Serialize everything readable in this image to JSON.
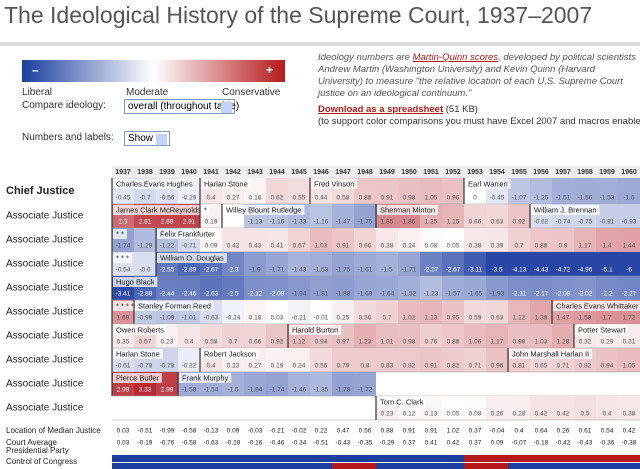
{
  "title": "The Ideological History of the Supreme Court, 1937–2007",
  "legend": {
    "minus": "–",
    "plus": "+",
    "labels": [
      "Liberal",
      "Moderate",
      "Conservative"
    ]
  },
  "controls": [
    {
      "label": "Compare ideology:",
      "value": "overall (throughout table)"
    },
    {
      "label": "Numbers and labels:",
      "value": "Show"
    }
  ],
  "intro": {
    "before": "Ideology numbers are ",
    "link": "Martin-Quinn scores",
    "after": ", developed by political scientists Andrew Martin (Washington University) and Kevin Quinn (Harvard University) to measure \"the relative location of each U.S. Supreme Court justice on an ideological continuum.\""
  },
  "download": {
    "link": "Download as a spreadsheet",
    "size": "(51 KB)",
    "note": "(to support color comparisons you must have Excel 2007 and macros enabled)"
  },
  "table": {
    "years": [
      1937,
      1938,
      1939,
      1940,
      1941,
      1942,
      1943,
      1944,
      1945,
      1946,
      1947,
      1948,
      1949,
      1950,
      1951,
      1952,
      1953,
      1954,
      1955,
      1956,
      1957,
      1958,
      1959,
      1960
    ],
    "rows": [
      {
        "role": "Chief Justice",
        "segments": [
          {
            "name": "Charles Evans Hughes",
            "start": 0
          },
          {
            "name": "Harlan Stone",
            "start": 4
          },
          {
            "name": "Fred Vinson",
            "start": 9
          },
          {
            "name": "Earl Warren",
            "start": 16
          }
        ],
        "values": [
          -0.45,
          -0.7,
          -0.56,
          -0.29,
          0.4,
          0.27,
          0.18,
          0.62,
          0.55,
          0.44,
          0.58,
          0.88,
          0.91,
          0.98,
          1.05,
          0.96,
          0,
          -0.45,
          -1.07,
          -1.25,
          -1.51,
          -1.56,
          -1.53,
          -1.6
        ]
      },
      {
        "role": "Associate Justice",
        "segments": [
          {
            "name": "James Clark McReynolds",
            "start": 0
          },
          {
            "name": "*",
            "start": 4
          },
          {
            "name": "Willey Blount Rutledge",
            "start": 5
          },
          {
            "name": "Sherman Minton",
            "start": 12
          },
          {
            "name": "William J. Brennan",
            "start": 19
          }
        ],
        "values": [
          2.3,
          2.81,
          2.88,
          2.91,
          0.19,
          null,
          -1.13,
          -1.16,
          -1.33,
          -1.16,
          -1.47,
          -1.75,
          1.85,
          1.86,
          1.25,
          1.15,
          0.66,
          0.63,
          0.92,
          -0.62,
          -0.74,
          -0.75,
          -0.91,
          -0.93
        ]
      },
      {
        "role": "Associate Justice",
        "segments": [
          {
            "name": "* *",
            "start": 0
          },
          {
            "name": "Felix Frankfurter",
            "start": 2
          }
        ],
        "values": [
          -1.74,
          -1.29,
          -1.22,
          -0.71,
          0.09,
          0.42,
          0.43,
          0.41,
          0.67,
          1.03,
          0.91,
          0.66,
          0.38,
          0.24,
          0.08,
          0.05,
          0.38,
          0.39,
          0.7,
          0.88,
          0.9,
          1.17,
          1.4,
          1.44
        ]
      },
      {
        "role": "Associate Justice",
        "segments": [
          {
            "name": "* * *",
            "start": 0
          },
          {
            "name": "William O. Douglas",
            "start": 2
          }
        ],
        "values": [
          -0.54,
          -0.6,
          -2.55,
          -2.89,
          -2.67,
          -2.3,
          -1.9,
          -1.71,
          -1.43,
          -1.53,
          -1.75,
          -1.61,
          -1.5,
          -1.71,
          -2.37,
          -2.67,
          -3.11,
          -3.5,
          -4.13,
          -4.43,
          -4.72,
          -4.96,
          -5.1,
          -6
        ]
      },
      {
        "role": "Associate Justice",
        "segments": [
          {
            "name": "Hugo Black",
            "start": 0
          }
        ],
        "values": [
          -3.41,
          -2.88,
          -2.44,
          -2.46,
          -2.63,
          -2.5,
          -2.12,
          -2.09,
          -1.94,
          -1.81,
          -1.88,
          -1.69,
          -1.64,
          -1.52,
          -1.23,
          -1.57,
          -1.65,
          -1.93,
          -2.11,
          -2.17,
          -2.08,
          -2.02,
          -2.2,
          -2.27
        ]
      },
      {
        "role": "Associate Justice",
        "segments": [
          {
            "name": "* * * *",
            "start": 0
          },
          {
            "name": "Stanley Forman Reed",
            "start": 1
          },
          {
            "name": "Charles Evans Whittaker",
            "start": 20
          }
        ],
        "values": [
          1.69,
          -0.99,
          -1.09,
          -1.01,
          -0.63,
          -0.24,
          0.18,
          0.03,
          -0.21,
          -0.01,
          0.25,
          0.56,
          0.7,
          1.02,
          1.13,
          0.95,
          0.59,
          0.63,
          1.12,
          1.38,
          1.47,
          1.58,
          1.7,
          1.72
        ]
      },
      {
        "role": "Associate Justice",
        "segments": [
          {
            "name": "Owen Roberts",
            "start": 0
          },
          {
            "name": "Harold Burton",
            "start": 8
          },
          {
            "name": "Potter Stewart",
            "start": 21
          }
        ],
        "values": [
          0.35,
          0.67,
          0.23,
          0.4,
          0.58,
          0.7,
          0.66,
          0.92,
          1.12,
          0.94,
          0.97,
          1.23,
          1.01,
          0.98,
          0.76,
          0.88,
          1.06,
          1.17,
          0.98,
          1.03,
          1.28,
          0.32,
          0.29,
          0.31
        ]
      },
      {
        "role": "Associate Justice",
        "segments": [
          {
            "name": "Harlan Stone",
            "start": 0
          },
          {
            "name": "Robert Jackson",
            "start": 4
          },
          {
            "name": "John Marshall Harlan II",
            "start": 18
          }
        ],
        "values": [
          -0.61,
          -0.78,
          -0.78,
          -0.32,
          0.4,
          0.23,
          0.27,
          0.19,
          0.24,
          0.56,
          0.79,
          0.8,
          0.83,
          0.82,
          0.91,
          0.82,
          0.71,
          0.96,
          0.81,
          0.65,
          0.71,
          0.82,
          0.94,
          1.05
        ]
      },
      {
        "role": "Associate Justice",
        "segments": [
          {
            "name": "Pierce Butler",
            "start": 0
          },
          {
            "name": "Frank Murphy",
            "start": 3
          }
        ],
        "values": [
          2.99,
          3.33,
          2.98,
          -1.58,
          -1.54,
          -1.5,
          -1.64,
          -1.74,
          -1.46,
          -1.35,
          -1.78,
          -1.72,
          null,
          null,
          null,
          null,
          null,
          null,
          null,
          null,
          null,
          null,
          null,
          null
        ]
      },
      {
        "role": "Associate Justice",
        "segments": [
          {
            "name": "Tom C. Clark",
            "start": 12
          }
        ],
        "values": [
          null,
          null,
          null,
          null,
          null,
          null,
          null,
          null,
          null,
          null,
          null,
          null,
          0.23,
          0.12,
          0.13,
          0.05,
          0.08,
          0.26,
          0.28,
          0.42,
          0.42,
          0.5,
          0.4,
          0.38
        ]
      }
    ],
    "median": {
      "label": "Location of Median Justice",
      "values": [
        0.03,
        -0.51,
        -0.99,
        -0.58,
        -0.13,
        0.09,
        -0.03,
        -0.21,
        -0.02,
        0.22,
        0.47,
        0.56,
        0.88,
        0.91,
        0.91,
        1.02,
        0.37,
        -0.04,
        0.4,
        0.64,
        0.26,
        0.61,
        0.54,
        0.42
      ]
    },
    "average": {
      "label": "Court Average",
      "values": [
        0.03,
        -0.19,
        -0.76,
        -0.58,
        -0.63,
        -0.28,
        -0.16,
        -0.46,
        -0.34,
        -0.51,
        -0.43,
        -0.35,
        -0.29,
        0.37,
        0.41,
        0.42,
        0.37,
        0.09,
        -0.07,
        -0.18,
        -0.42,
        -0.43,
        -0.36,
        -0.38
      ]
    },
    "presidential_party": {
      "label": "Presidential Party",
      "values": [
        "D",
        "D",
        "D",
        "D",
        "D",
        "D",
        "D",
        "D",
        "D",
        "D",
        "D",
        "D",
        "D",
        "D",
        "D",
        "D",
        "R",
        "R",
        "R",
        "R",
        "R",
        "R",
        "R",
        "R"
      ]
    },
    "congress": {
      "label": "Control of Congress",
      "values": [
        "D",
        "D",
        "D",
        "D",
        "D",
        "D",
        "D",
        "D",
        "D",
        "D",
        "R",
        "R",
        "D",
        "D",
        "D",
        "D",
        "R",
        "R",
        "D",
        "D",
        "D",
        "D",
        "D",
        "D"
      ]
    },
    "party_colors": {
      "D": "#1b3f9e",
      "R": "#b51a1a"
    }
  }
}
